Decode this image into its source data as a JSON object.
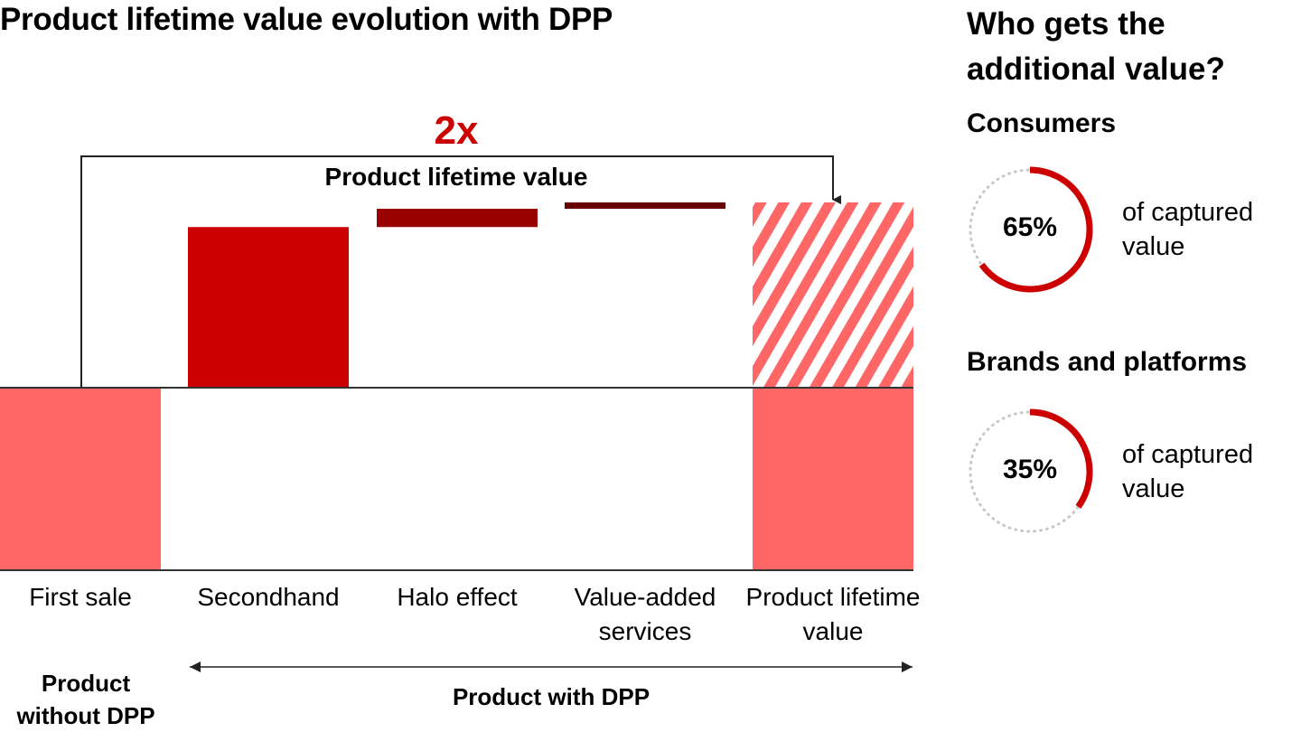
{
  "title": "Product lifetime value evolution with DPP",
  "chart_data": {
    "type": "bar",
    "subtype": "waterfall",
    "categories": [
      "First sale",
      "Secondhand",
      "Halo effect",
      "Value-added services",
      "Product lifetime value"
    ],
    "values": [
      100,
      88,
      10,
      3.5,
      201.5
    ],
    "roles": [
      "base",
      "increment",
      "increment",
      "increment",
      "total"
    ],
    "colors": {
      "first_sale": "#ff6666",
      "secondhand": "#cc0000",
      "halo": "#990000",
      "services": "#660000",
      "total_hatch": "#ff6666"
    },
    "annotation": {
      "multiplier": "2x",
      "label": "Product lifetime value"
    },
    "groups": [
      {
        "label": "Product without DPP"
      },
      {
        "label": "Product with DPP"
      }
    ],
    "grid": false
  },
  "right_panel": {
    "title": "Who gets the additional value?",
    "items": [
      {
        "group": "Consumers",
        "percent": 65,
        "percent_label": "65%",
        "caption_line1": "of captured",
        "caption_line2": "value"
      },
      {
        "group": "Brands and platforms",
        "percent": 35,
        "percent_label": "35%",
        "caption_line1": "of captured",
        "caption_line2": "value"
      }
    ],
    "accent": "#cc0000"
  }
}
